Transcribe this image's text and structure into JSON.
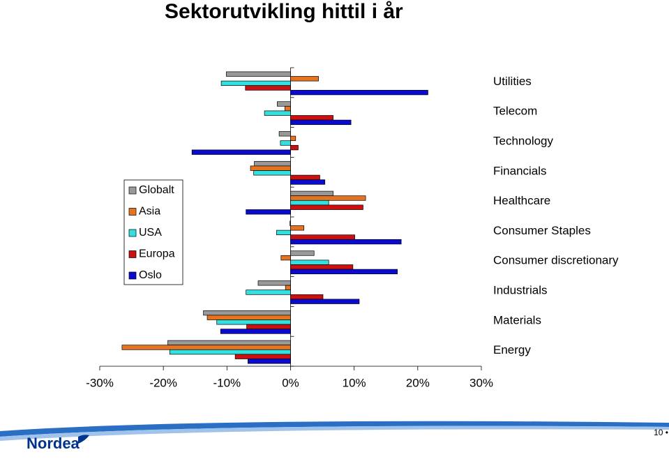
{
  "chart_data": {
    "type": "hbar",
    "title": "Sektorutvikling hittil i år",
    "categories": [
      "Utilities",
      "Telecom",
      "Technology",
      "Financials",
      "Healthcare",
      "Consumer Staples",
      "Consumer discretionary",
      "Industrials",
      "Materials",
      "Energy"
    ],
    "series": [
      {
        "name": "Globalt",
        "color": "#999999",
        "values": [
          -10.1,
          -2.1,
          -1.8,
          -5.7,
          6.7,
          -0.1,
          3.7,
          -5.1,
          -13.7,
          -19.3
        ]
      },
      {
        "name": "Asia",
        "color": "#e8731f",
        "values": [
          4.4,
          -0.9,
          0.8,
          -6.3,
          11.8,
          2.1,
          -1.5,
          -0.8,
          -13.1,
          -26.5
        ]
      },
      {
        "name": "USA",
        "color": "#33e0e0",
        "values": [
          -10.9,
          -4.1,
          -1.6,
          -5.8,
          6.0,
          -2.2,
          6.0,
          -7.0,
          -11.6,
          -19.0
        ]
      },
      {
        "name": "Europa",
        "color": "#cc1010",
        "values": [
          -7.1,
          6.7,
          1.2,
          4.6,
          11.4,
          10.1,
          9.8,
          5.1,
          -6.9,
          -8.7
        ]
      },
      {
        "name": "Oslo",
        "color": "#0a0ad0",
        "values": [
          21.6,
          9.5,
          -15.5,
          5.4,
          -7.0,
          17.4,
          16.8,
          10.8,
          -11.0,
          -6.7
        ]
      }
    ],
    "xlim": [
      -30,
      30
    ],
    "xticks": [
      {
        "value": -30,
        "label": "-30%"
      },
      {
        "value": -20,
        "label": "-20%"
      },
      {
        "value": -10,
        "label": "-10%"
      },
      {
        "value": 0,
        "label": "0%"
      },
      {
        "value": 10,
        "label": "10%"
      },
      {
        "value": 20,
        "label": "20%"
      },
      {
        "value": 30,
        "label": "30%"
      }
    ],
    "legend": "left"
  },
  "footer": {
    "logo": "Nordea",
    "page": "10 •"
  }
}
